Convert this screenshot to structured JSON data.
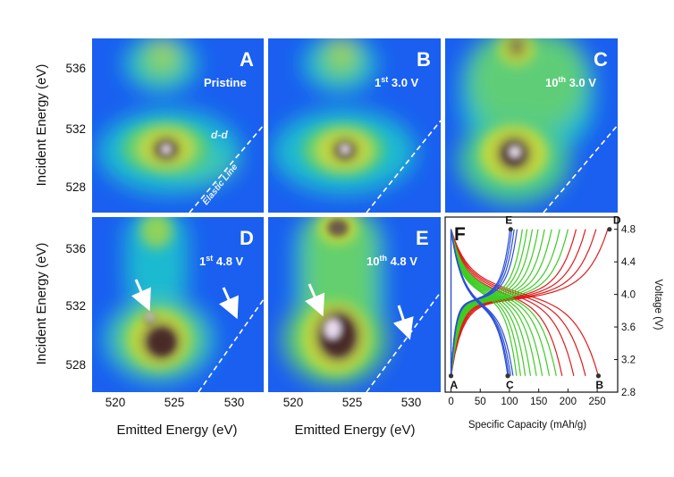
{
  "chart_data": [
    {
      "panel": "A",
      "type": "heatmap",
      "label": "Pristine",
      "xlabel": "",
      "ylabel": "Incident Energy (eV)",
      "xlim": [
        517.5,
        528
      ],
      "ylim": [
        526.5,
        537.8
      ],
      "yticks": [
        "528",
        "532",
        "536"
      ],
      "annotations": [
        "d-d",
        "Elastic Line"
      ]
    },
    {
      "panel": "B",
      "type": "heatmap",
      "label_prefix": "1",
      "label_sup": "st",
      "label_suffix": " 3.0 V",
      "xlim": [
        517.5,
        528
      ],
      "ylim": [
        526.5,
        537.8
      ]
    },
    {
      "panel": "C",
      "type": "heatmap",
      "label_prefix": "10",
      "label_sup": "th",
      "label_suffix": " 3.0 V",
      "xlim": [
        517.5,
        528
      ],
      "ylim": [
        526.5,
        537.8
      ]
    },
    {
      "panel": "D",
      "type": "heatmap",
      "label_prefix": "1",
      "label_sup": "st",
      "label_suffix": " 4.8 V",
      "xlabel": "Emitted Energy (eV)",
      "ylabel": "Incident Energy (eV)",
      "xlim": [
        517.5,
        532.5
      ],
      "ylim": [
        526.5,
        537.8
      ],
      "xticks": [
        "520",
        "525",
        "530"
      ],
      "yticks": [
        "528",
        "532",
        "536"
      ]
    },
    {
      "panel": "E",
      "type": "heatmap",
      "label_prefix": "10",
      "label_sup": "th",
      "label_suffix": " 4.8 V",
      "xlabel": "Emitted Energy (eV)",
      "xlim": [
        517.5,
        532.5
      ],
      "ylim": [
        526.5,
        537.8
      ],
      "xticks": [
        "520",
        "525",
        "530"
      ]
    },
    {
      "panel": "F",
      "type": "line",
      "xlabel": "Specific Capacity (mAh/g)",
      "ylabel": "Voltage (V)",
      "xlim": [
        -10,
        285
      ],
      "ylim": [
        2.8,
        4.95
      ],
      "xticks": [
        0,
        50,
        100,
        150,
        200,
        250
      ],
      "yticks": [
        "2.8",
        "3.2",
        "3.6",
        "4.0",
        "4.4",
        "4.8"
      ],
      "points": [
        {
          "label": "A",
          "x": 0,
          "y": 3.0
        },
        {
          "label": "B",
          "x": 252,
          "y": 3.0
        },
        {
          "label": "C",
          "x": 97,
          "y": 3.0
        },
        {
          "label": "D",
          "x": 271,
          "y": 4.8
        },
        {
          "label": "E",
          "x": 102,
          "y": 4.8
        }
      ],
      "series": [
        {
          "color": "#e01b1b",
          "cycles": [
            {
              "capacity": 268,
              "discharge": 252
            },
            {
              "capacity": 248,
              "discharge": 230
            },
            {
              "capacity": 230,
              "discharge": 210
            },
            {
              "capacity": 214,
              "discharge": 190
            }
          ]
        },
        {
          "color": "#3ccc22",
          "cycles": [
            {
              "capacity": 200,
              "discharge": 180
            },
            {
              "capacity": 186,
              "discharge": 168
            },
            {
              "capacity": 172,
              "discharge": 156
            },
            {
              "capacity": 160,
              "discharge": 146
            },
            {
              "capacity": 149,
              "discharge": 136
            },
            {
              "capacity": 139,
              "discharge": 127
            },
            {
              "capacity": 130,
              "discharge": 119
            },
            {
              "capacity": 122,
              "discharge": 112
            }
          ]
        },
        {
          "color": "#2b4fd6",
          "cycles": [
            {
              "capacity": 113,
              "discharge": 106
            },
            {
              "capacity": 108,
              "discharge": 102
            },
            {
              "capacity": 104,
              "discharge": 99
            },
            {
              "capacity": 101,
              "discharge": 97
            }
          ]
        }
      ]
    }
  ]
}
